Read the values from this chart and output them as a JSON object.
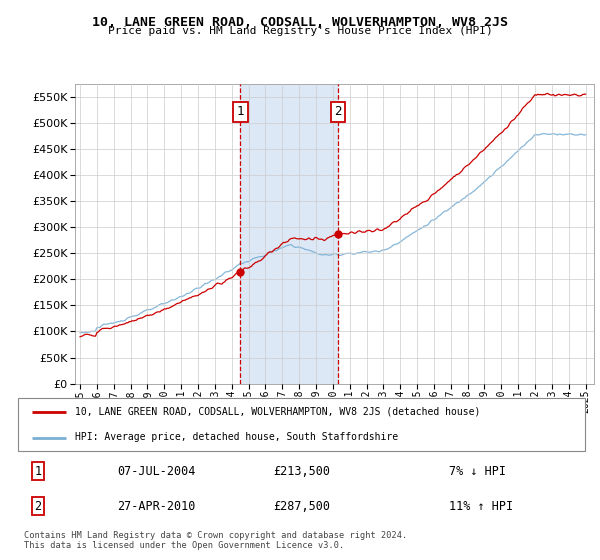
{
  "title": "10, LANE GREEN ROAD, CODSALL, WOLVERHAMPTON, WV8 2JS",
  "subtitle": "Price paid vs. HM Land Registry's House Price Index (HPI)",
  "legend_line1": "10, LANE GREEN ROAD, CODSALL, WOLVERHAMPTON, WV8 2JS (detached house)",
  "legend_line2": "HPI: Average price, detached house, South Staffordshire",
  "transaction1_date": "07-JUL-2004",
  "transaction1_price": "£213,500",
  "transaction1_hpi": "7% ↓ HPI",
  "transaction2_date": "27-APR-2010",
  "transaction2_price": "£287,500",
  "transaction2_hpi": "11% ↑ HPI",
  "footer": "Contains HM Land Registry data © Crown copyright and database right 2024.\nThis data is licensed under the Open Government Licence v3.0.",
  "price_color": "#cc0000",
  "hpi_color": "#7aafd4",
  "grid_color": "#cccccc",
  "span_color": "#dce8f5",
  "ylim": [
    0,
    575000
  ],
  "yticks": [
    0,
    50000,
    100000,
    150000,
    200000,
    250000,
    300000,
    350000,
    400000,
    450000,
    500000,
    550000
  ],
  "transaction1_x": 2004.52,
  "transaction2_x": 2010.32
}
